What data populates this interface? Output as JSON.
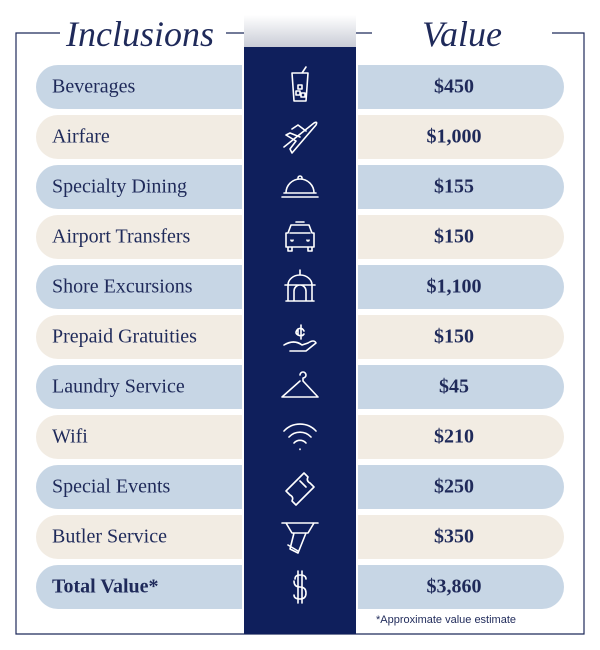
{
  "header": {
    "left": "Inclusions",
    "right": "Value"
  },
  "rows": [
    {
      "label": "Beverages",
      "value": "$450"
    },
    {
      "label": "Airfare",
      "value": "$1,000"
    },
    {
      "label": "Specialty Dining",
      "value": "$155"
    },
    {
      "label": "Airport Transfers",
      "value": "$150"
    },
    {
      "label": "Shore Excursions",
      "value": "$1,100"
    },
    {
      "label": "Prepaid Gratuities",
      "value": "$150"
    },
    {
      "label": "Laundry Service",
      "value": "$45"
    },
    {
      "label": "Wifi",
      "value": "$210"
    },
    {
      "label": "Special Events",
      "value": "$250"
    },
    {
      "label": "Butler Service",
      "value": "$350"
    }
  ],
  "total": {
    "label": "Total Value*",
    "value": "$3,860"
  },
  "footnote": "*Approximate value estimate"
}
